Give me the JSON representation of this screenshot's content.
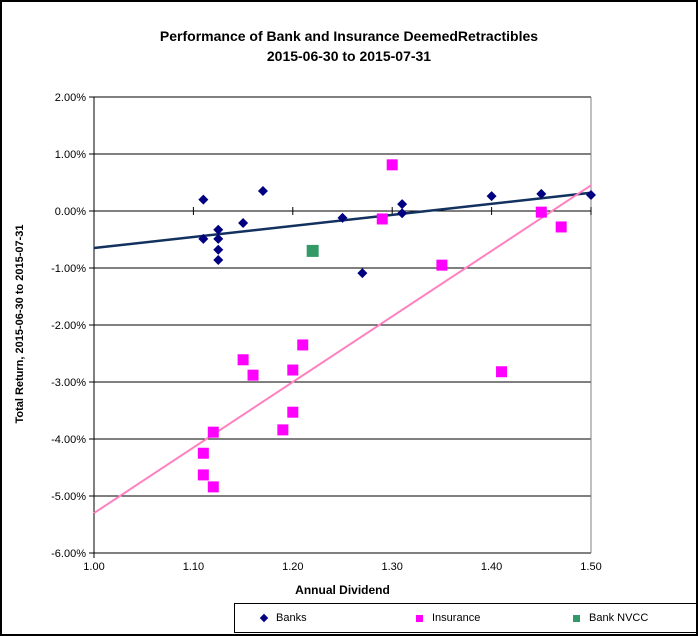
{
  "figure": {
    "title_line1": "Performance of Bank and Insurance DeemedRetractibles",
    "title_line2": "2015-06-30 to 2015-07-31"
  },
  "colors": {
    "banks": "#000080",
    "banks_trendline": "#12315F",
    "insurance": "#FF00FF",
    "insurance_trendline": "#FF80C0",
    "bank_nvcc": "#339966",
    "axis": "#000000",
    "plot_right_border": "#808080"
  },
  "chart_data": {
    "type": "scatter",
    "title": "Performance of Bank and Insurance DeemedRetractibles",
    "subtitle": "2015-06-30 to 2015-07-31",
    "xlabel": "Annual Dividend",
    "ylabel": "Total Return, 2015-06-30  to 2015-07-31",
    "xlim": [
      1.0,
      1.5
    ],
    "ylim_percent": [
      -6.0,
      2.0
    ],
    "grid": "horizontal",
    "legend_position": "bottom",
    "x_ticks": [
      {
        "value": 1.0,
        "label": "1.00"
      },
      {
        "value": 1.1,
        "label": "1.10"
      },
      {
        "value": 1.2,
        "label": "1.20"
      },
      {
        "value": 1.3,
        "label": "1.30"
      },
      {
        "value": 1.4,
        "label": "1.40"
      },
      {
        "value": 1.5,
        "label": "1.50"
      }
    ],
    "y_ticks": [
      {
        "value": 2.0,
        "label": "2.00%"
      },
      {
        "value": 1.0,
        "label": "1.00%"
      },
      {
        "value": 0.0,
        "label": "0.00%"
      },
      {
        "value": -1.0,
        "label": "-1.00%"
      },
      {
        "value": -2.0,
        "label": "-2.00%"
      },
      {
        "value": -3.0,
        "label": "-3.00%"
      },
      {
        "value": -4.0,
        "label": "-4.00%"
      },
      {
        "value": -5.0,
        "label": "-5.00%"
      },
      {
        "value": -6.0,
        "label": "-6.00%"
      }
    ],
    "series": [
      {
        "name": "Banks",
        "marker": "diamond",
        "color": "#000080",
        "points": [
          [
            1.11,
            0.2
          ],
          [
            1.17,
            0.35
          ],
          [
            1.15,
            -0.21
          ],
          [
            1.11,
            -0.49
          ],
          [
            1.125,
            -0.33
          ],
          [
            1.125,
            -0.49
          ],
          [
            1.125,
            -0.68
          ],
          [
            1.125,
            -0.86
          ],
          [
            1.25,
            -0.12
          ],
          [
            1.27,
            -1.09
          ],
          [
            1.31,
            0.12
          ],
          [
            1.31,
            -0.04
          ],
          [
            1.4,
            0.26
          ],
          [
            1.45,
            0.3
          ],
          [
            1.5,
            0.28
          ]
        ]
      },
      {
        "name": "Insurance",
        "marker": "square",
        "color": "#FF00FF",
        "points": [
          [
            1.3,
            0.81
          ],
          [
            1.29,
            -0.14
          ],
          [
            1.35,
            -0.95
          ],
          [
            1.45,
            -0.02
          ],
          [
            1.47,
            -0.28
          ],
          [
            1.41,
            -2.82
          ],
          [
            1.21,
            -2.35
          ],
          [
            1.15,
            -2.61
          ],
          [
            1.16,
            -2.88
          ],
          [
            1.2,
            -2.79
          ],
          [
            1.2,
            -3.53
          ],
          [
            1.19,
            -3.84
          ],
          [
            1.12,
            -3.88
          ],
          [
            1.11,
            -4.25
          ],
          [
            1.11,
            -4.63
          ],
          [
            1.12,
            -4.84
          ]
        ]
      },
      {
        "name": "Bank NVCC",
        "marker": "square",
        "color": "#339966",
        "points": [
          [
            1.22,
            -0.7
          ]
        ]
      }
    ],
    "trendlines": [
      {
        "series": "Banks",
        "color": "#12315F",
        "width": 2.5,
        "from": [
          1.0,
          -0.65
        ],
        "to": [
          1.5,
          0.32
        ]
      },
      {
        "series": "Insurance",
        "color": "#FF80C0",
        "width": 2,
        "from": [
          1.0,
          -5.3
        ],
        "to": [
          1.5,
          0.45
        ]
      }
    ]
  }
}
